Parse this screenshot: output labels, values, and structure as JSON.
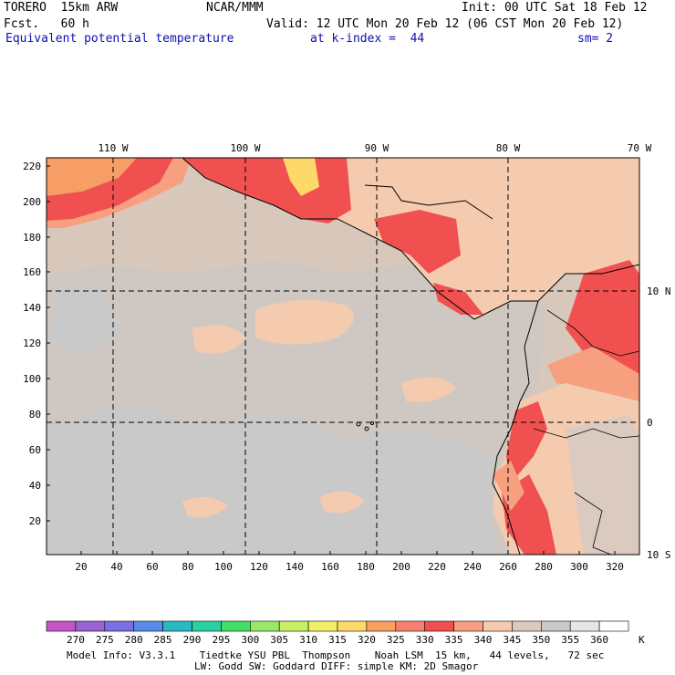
{
  "header": {
    "model": "TORERO  15km ARW",
    "center": "NCAR/MMM",
    "init": "Init: 00 UTC Sat 18 Feb 12",
    "fcst": "Fcst.   60 h",
    "valid": "Valid: 12 UTC Mon 20 Feb 12 (06 CST Mon 20 Feb 12)",
    "field": "Equivalent potential temperature",
    "level": "at k-index =  44",
    "smoothing": "sm= 2"
  },
  "map": {
    "top_lon_labels": [
      "110 W",
      "100 W",
      "90 W",
      "80 W",
      "70 W"
    ],
    "right_lat_labels": [
      "10 N",
      "0",
      "10 S"
    ],
    "left_y_ticks": [
      "220",
      "200",
      "180",
      "160",
      "140",
      "120",
      "100",
      "80",
      "60",
      "40",
      "20"
    ],
    "bottom_x_ticks": [
      "20",
      "40",
      "60",
      "80",
      "100",
      "120",
      "140",
      "160",
      "180",
      "200",
      "220",
      "240",
      "260",
      "280",
      "300",
      "320"
    ],
    "colors": {
      "gray": "#c9c9c9",
      "tan": "#f5cbb0",
      "salmon": "#f7a080",
      "red": "#f05050",
      "orange": "#f79e66",
      "yellow": "#ffd86a",
      "mid": "#d8c8bb"
    }
  },
  "colorbar": {
    "labels": [
      "270",
      "275",
      "280",
      "285",
      "290",
      "295",
      "300",
      "305",
      "310",
      "315",
      "320",
      "325",
      "330",
      "335",
      "340",
      "345",
      "350",
      "355",
      "360"
    ],
    "unit": "K",
    "colors": [
      "#c654c8",
      "#9a63d2",
      "#7a6fe0",
      "#5a8ae8",
      "#2ab9c0",
      "#2ad0a0",
      "#44dd66",
      "#99e86a",
      "#c8ee66",
      "#f2f06a",
      "#ffd86a",
      "#f7a060",
      "#f58070",
      "#f05050",
      "#f7a080",
      "#f5cbb0",
      "#dcc8bc",
      "#c9c9c9",
      "#e6e6e6",
      "#ffffff"
    ]
  },
  "footer": {
    "line1": "Model Info: V3.3.1    Tiedtke YSU PBL  Thompson    Noah LSM  15 km,   44 levels,   72 sec",
    "line2": "LW: Godd SW: Goddard DIFF: simple KM: 2D Smagor"
  }
}
